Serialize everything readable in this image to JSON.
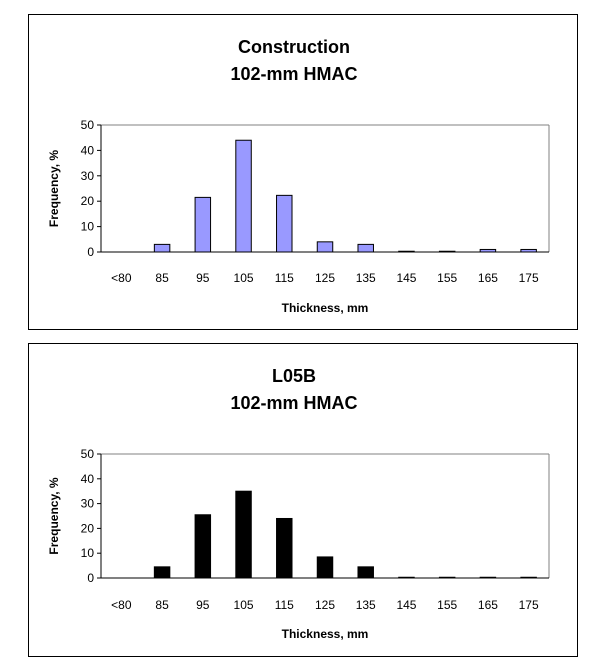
{
  "chart_data": [
    {
      "type": "bar",
      "title": [
        "Construction",
        "102-mm HMAC"
      ],
      "xlabel": "Thickness, mm",
      "ylabel": "Frequency, %",
      "ylim": [
        0,
        50
      ],
      "yticks": [
        0,
        10,
        20,
        30,
        40,
        50
      ],
      "categories": [
        "<80",
        "85",
        "95",
        "105",
        "115",
        "125",
        "135",
        "145",
        "155",
        "165",
        "175"
      ],
      "values": [
        0,
        3,
        21.5,
        44,
        22.3,
        4,
        3,
        0.3,
        0.3,
        1,
        1
      ],
      "bar_color": "#9999FF",
      "grid": false,
      "legend": "none"
    },
    {
      "type": "bar",
      "title": [
        "L05B",
        "102-mm HMAC"
      ],
      "xlabel": "Thickness, mm",
      "ylabel": "Frequency, %",
      "ylim": [
        0,
        50
      ],
      "yticks": [
        0,
        10,
        20,
        30,
        40,
        50
      ],
      "categories": [
        "<80",
        "85",
        "95",
        "105",
        "115",
        "125",
        "135",
        "145",
        "155",
        "165",
        "175"
      ],
      "values": [
        0,
        4.5,
        25.5,
        35,
        24,
        8.5,
        4.5,
        0.3,
        0.3,
        0.3,
        0.3
      ],
      "bar_color": "#000000",
      "grid": false,
      "legend": "none"
    }
  ]
}
